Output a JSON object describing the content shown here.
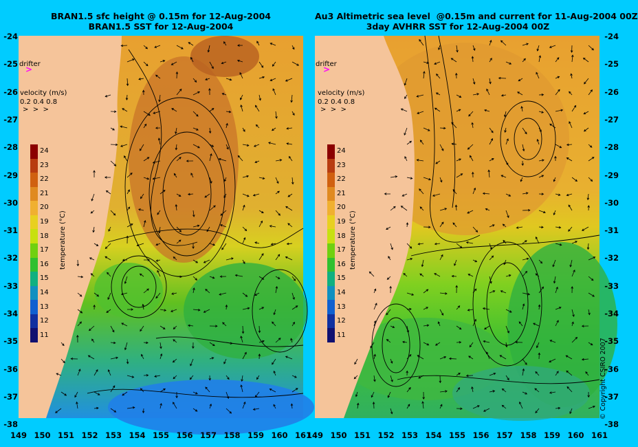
{
  "titles": {
    "left": "BRAN1.5 sfc height @ 0.15m for 12-Aug-2004\nBRAN1.5 SST for 12-Aug-2004",
    "right": "Au3 Altimetric sea level  @0.15m and current for 11-Aug-2004 00Z\n3day AVHRR SST for 12-Aug-2004 00Z"
  },
  "lat_labels": [
    "-24",
    "-25",
    "-26",
    "-27",
    "-28",
    "-29",
    "-30",
    "-31",
    "-32",
    "-33",
    "-34",
    "-35",
    "-36",
    "-37",
    "-38"
  ],
  "lon_labels": [
    "149",
    "150",
    "151",
    "152",
    "153",
    "154",
    "155",
    "156",
    "157",
    "158",
    "159",
    "160",
    "161"
  ],
  "overlay": {
    "drifter_label": "drifter",
    "drifter_arrow": ">",
    "velocity_label": "velocity (m/s)",
    "velocity_scale": "0.2 0.4 0.8",
    "velocity_arrows": ">  >  >"
  },
  "colorbar": {
    "ticks": [
      "24",
      "23",
      "22",
      "21",
      "20",
      "19",
      "18",
      "17",
      "16",
      "15",
      "14",
      "13",
      "12",
      "11"
    ],
    "label": "temperature (°C)",
    "colors": [
      "#8b0000",
      "#b83c10",
      "#d06010",
      "#e08a20",
      "#f0b030",
      "#e8d020",
      "#c8e010",
      "#70d010",
      "#30c030",
      "#10b080",
      "#1090c0",
      "#1060d0",
      "#1030a0",
      "#101070"
    ]
  },
  "map_colors": {
    "land": "#f5c49a",
    "warm": "#e8a030",
    "hot": "#c06020",
    "mid": "#d8d020",
    "green": "#40c020",
    "cool": "#20a8a0",
    "cold": "#2080e0"
  },
  "copyright": "© Copyright CSIRO 2007"
}
